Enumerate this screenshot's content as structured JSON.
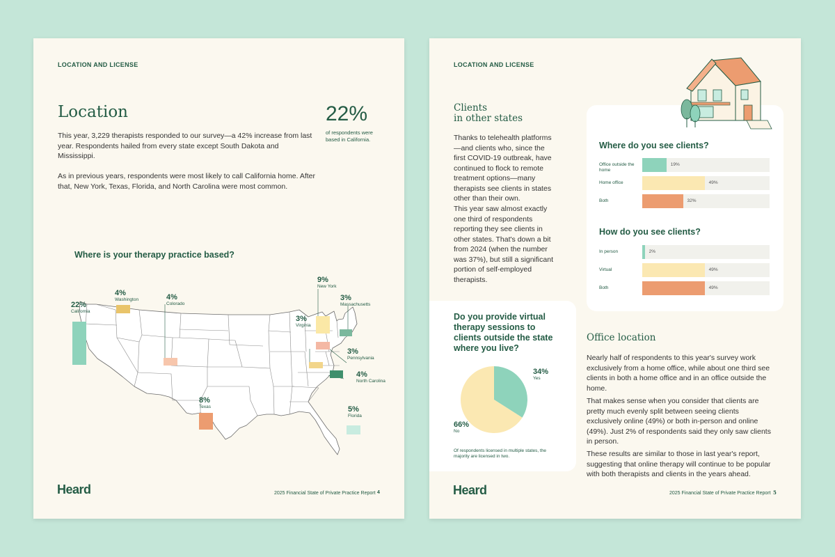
{
  "page_left": {
    "eyebrow": "LOCATION AND LICENSE",
    "title": "Location",
    "para1": "This year, 3,229 therapists responded to our survey—a 42% increase from last year. Respondents hailed from every state except South Dakota and Mississippi.",
    "para2": "As in previous years, respondents were most likely to call California home. After that, New York, Texas, Florida, and North Carolina were most common.",
    "stat": {
      "value": "22%",
      "caption": "of respondents were based in California."
    },
    "map_title": "Where is your therapy practice based?",
    "states": [
      {
        "pct": "22%",
        "name": "California",
        "color": "#8ed3bb"
      },
      {
        "pct": "4%",
        "name": "Washington",
        "color": "#e9c46a"
      },
      {
        "pct": "4%",
        "name": "Colorado",
        "color": "#f7c6ac"
      },
      {
        "pct": "9%",
        "name": "New York",
        "color": "#fbe8a6"
      },
      {
        "pct": "3%",
        "name": "Massachusetts",
        "color": "#7bb89d"
      },
      {
        "pct": "3%",
        "name": "Virginia",
        "color": "#f2d58a"
      },
      {
        "pct": "3%",
        "name": "Pennsylvania",
        "color": "#f4b8a4"
      },
      {
        "pct": "4%",
        "name": "North Carolina",
        "color": "#3f8f6c"
      },
      {
        "pct": "8%",
        "name": "Texas",
        "color": "#ec9c70"
      },
      {
        "pct": "5%",
        "name": "Florida",
        "color": "#c8ece0"
      }
    ],
    "logo": "Heard",
    "footer": "2025 Financial State of Private Practice Report",
    "page_num": "4"
  },
  "page_right": {
    "eyebrow": "LOCATION AND LICENSE",
    "clients_title_1": "Clients",
    "clients_title_2": "in other states",
    "clients_para1": "Thanks to telehealth platforms—and clients who, since the first COVID-19 outbreak, have continued to flock to remote treatment options—many therapists see clients in states other than their own.",
    "clients_para2": "This year saw almost exactly one third of respondents reporting they see clients in other states. That's down a bit from 2024 (when the number was 37%), but still a significant portion of self-employed therapists.",
    "where_title": "Where do you see clients?",
    "how_title": "How do you see clients?",
    "virtual_title": "Do you provide virtual therapy sessions to clients outside the state where you live?",
    "virtual_note": "Of respondents licensed in multiple states, the majority are licensed in two.",
    "office_title": "Office location",
    "office_para1": "Nearly half of respondents to this year's survey work exclusively from a home office, while about one third see clients in both a home office and in an office outside the home.",
    "office_para2": "That makes sense when you consider that clients are pretty much evenly split between seeing clients exclusively online (49%) or both in-person and online (49%). Just 2% of respondents said they only saw clients in person.",
    "office_para3": "These results are similar to those in last year's report, suggesting that online therapy will continue to be popular with both therapists and clients in the years ahead.",
    "logo": "Heard",
    "footer": "2025 Financial State of Private Practice Report",
    "page_num": "5"
  },
  "chart_data": [
    {
      "type": "bar",
      "title": "Where do you see clients?",
      "categories": [
        "Office outside the home",
        "Home office",
        "Both"
      ],
      "values": [
        19,
        49,
        32
      ],
      "value_labels": [
        "19%",
        "49%",
        "32%"
      ],
      "colors": [
        "#8ed3bb",
        "#fbe8b2",
        "#ec9c70"
      ],
      "xlim": [
        0,
        100
      ]
    },
    {
      "type": "bar",
      "title": "How do you see clients?",
      "categories": [
        "In person",
        "Virtual",
        "Both"
      ],
      "values": [
        2,
        49,
        49
      ],
      "value_labels": [
        "2%",
        "49%",
        "49%"
      ],
      "colors": [
        "#8ed3bb",
        "#fbe8b2",
        "#ec9c70"
      ],
      "xlim": [
        0,
        100
      ]
    },
    {
      "type": "pie",
      "title": "Do you provide virtual therapy sessions to clients outside the state where you live?",
      "categories": [
        "Yes",
        "No"
      ],
      "values": [
        34,
        66
      ],
      "value_labels": [
        "34%",
        "66%"
      ],
      "colors": [
        "#8ed3bb",
        "#fbe8b2"
      ]
    }
  ]
}
